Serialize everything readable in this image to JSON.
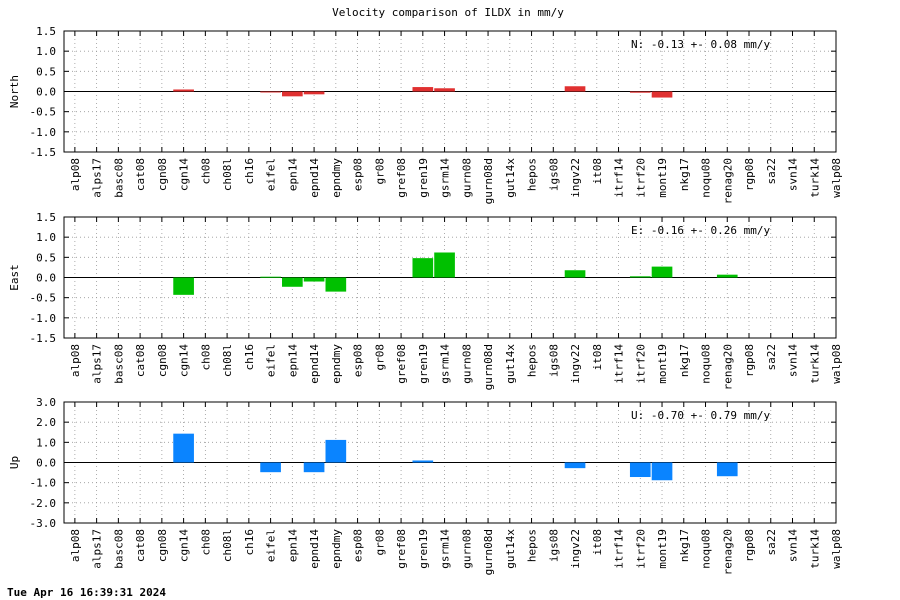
{
  "title": "Velocity comparison of ILDX in mm/y",
  "timestamp": "Tue Apr 16 16:39:31 2024",
  "chart_data": {
    "type": "bar",
    "categories": [
      "alp08",
      "alps17",
      "basc08",
      "cat08",
      "cgn08",
      "cgn14",
      "ch08",
      "ch08l",
      "ch16",
      "eifel",
      "epn14",
      "epnd14",
      "epndmy",
      "esp08",
      "gr08",
      "gref08",
      "gren19",
      "gsrm14",
      "gurn08",
      "gurn08d",
      "gut14x",
      "hepos",
      "igs08",
      "ingv22",
      "it08",
      "itrf14",
      "itrf20",
      "mont19",
      "nkg17",
      "noqu08",
      "renag20",
      "rgp08",
      "sa22",
      "svn14",
      "turk14",
      "walp08"
    ],
    "panels": [
      {
        "ylabel": "North",
        "color": "#e03030",
        "ylim": [
          -1.5,
          1.5
        ],
        "ticks": [
          "1.5",
          "1.0",
          "0.5",
          "0.0",
          "-0.5",
          "-1.0",
          "-1.5"
        ],
        "annotation": "N:  -0.13 +-  0.08 mm/y",
        "values": [
          0,
          0,
          0,
          0,
          0,
          0.05,
          0,
          0,
          0,
          -0.02,
          -0.12,
          -0.07,
          0,
          0,
          0,
          0,
          0.11,
          0.08,
          0,
          0,
          0,
          0,
          0,
          0.13,
          0,
          0,
          -0.03,
          -0.15,
          0,
          0,
          0,
          0,
          0,
          0,
          0,
          0
        ]
      },
      {
        "ylabel": "East",
        "color": "#00c000",
        "ylim": [
          -1.5,
          1.5
        ],
        "ticks": [
          "1.5",
          "1.0",
          "0.5",
          "0.0",
          "-0.5",
          "-1.0",
          "-1.5"
        ],
        "annotation": "E:  -0.16 +-  0.26 mm/y",
        "values": [
          0,
          0,
          0,
          0,
          0,
          -0.43,
          0,
          0,
          0,
          0.02,
          -0.23,
          -0.1,
          -0.35,
          0,
          0,
          0,
          0.48,
          0.62,
          0,
          0,
          0,
          0,
          0,
          0.18,
          0,
          0,
          0.03,
          0.27,
          0,
          0,
          0.07,
          0,
          0,
          0,
          0,
          0
        ]
      },
      {
        "ylabel": "Up",
        "color": "#0a84ff",
        "ylim": [
          -3.0,
          3.0
        ],
        "ticks": [
          "3.0",
          "2.0",
          "1.0",
          "0.0",
          "-1.0",
          "-2.0",
          "-3.0"
        ],
        "annotation": "U:  -0.70 +-  0.79 mm/y",
        "values": [
          0,
          0,
          0,
          0,
          0,
          1.43,
          0,
          0,
          0,
          -0.48,
          0,
          -0.48,
          1.12,
          0,
          0,
          0,
          0.1,
          0,
          0,
          0,
          0,
          0,
          0,
          -0.28,
          0,
          0,
          -0.72,
          -0.88,
          0,
          0,
          -0.68,
          0,
          0,
          0,
          0,
          0
        ]
      }
    ]
  }
}
